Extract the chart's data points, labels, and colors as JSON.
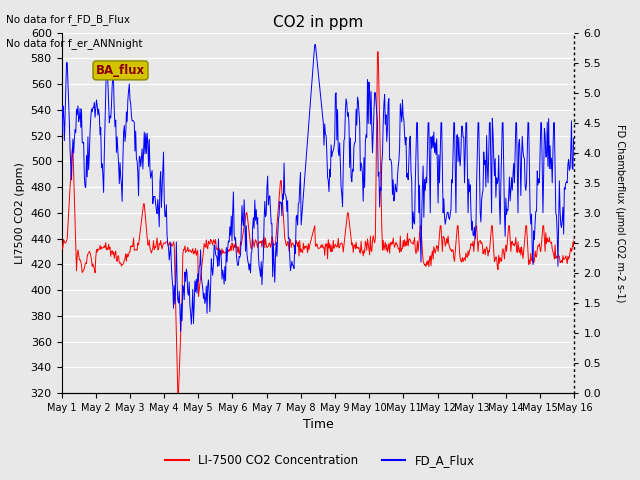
{
  "title": "CO2 in ppm",
  "xlabel": "Time",
  "ylabel_left": "LI7500 CO2 (ppm)",
  "ylabel_right": "FD Chamberflux (μmol CO2 m-2 s-1)",
  "text_no_data_1": "No data for f_FD_B_Flux",
  "text_no_data_2": "No data for f_er_ANNnight",
  "legend_label_red": "LI-7500 CO2 Concentration",
  "legend_label_blue": "FD_A_Flux",
  "ba_flux_label": "BA_flux",
  "ylim_left": [
    320,
    600
  ],
  "ylim_right": [
    0.0,
    6.0
  ],
  "yticks_left": [
    320,
    340,
    360,
    380,
    400,
    420,
    440,
    460,
    480,
    500,
    520,
    540,
    560,
    580,
    600
  ],
  "yticks_right": [
    0.0,
    0.5,
    1.0,
    1.5,
    2.0,
    2.5,
    3.0,
    3.5,
    4.0,
    4.5,
    5.0,
    5.5,
    6.0
  ],
  "xtick_labels": [
    "May 1",
    "May 2",
    "May 3",
    "May 4",
    "May 5",
    "May 6",
    "May 7",
    "May 8",
    "May 9",
    "May 10",
    "May 11",
    "May 12",
    "May 13",
    "May 14",
    "May 15",
    "May 16"
  ],
  "bg_color": "#e8e8e8",
  "plot_bg_color": "#e8e8e8",
  "grid_color": "white",
  "line_color_red": "red",
  "line_color_blue": "blue",
  "ba_flux_bg": "#d4c400",
  "ba_flux_fg": "#8b0000",
  "figsize": [
    6.4,
    4.8
  ],
  "dpi": 100
}
